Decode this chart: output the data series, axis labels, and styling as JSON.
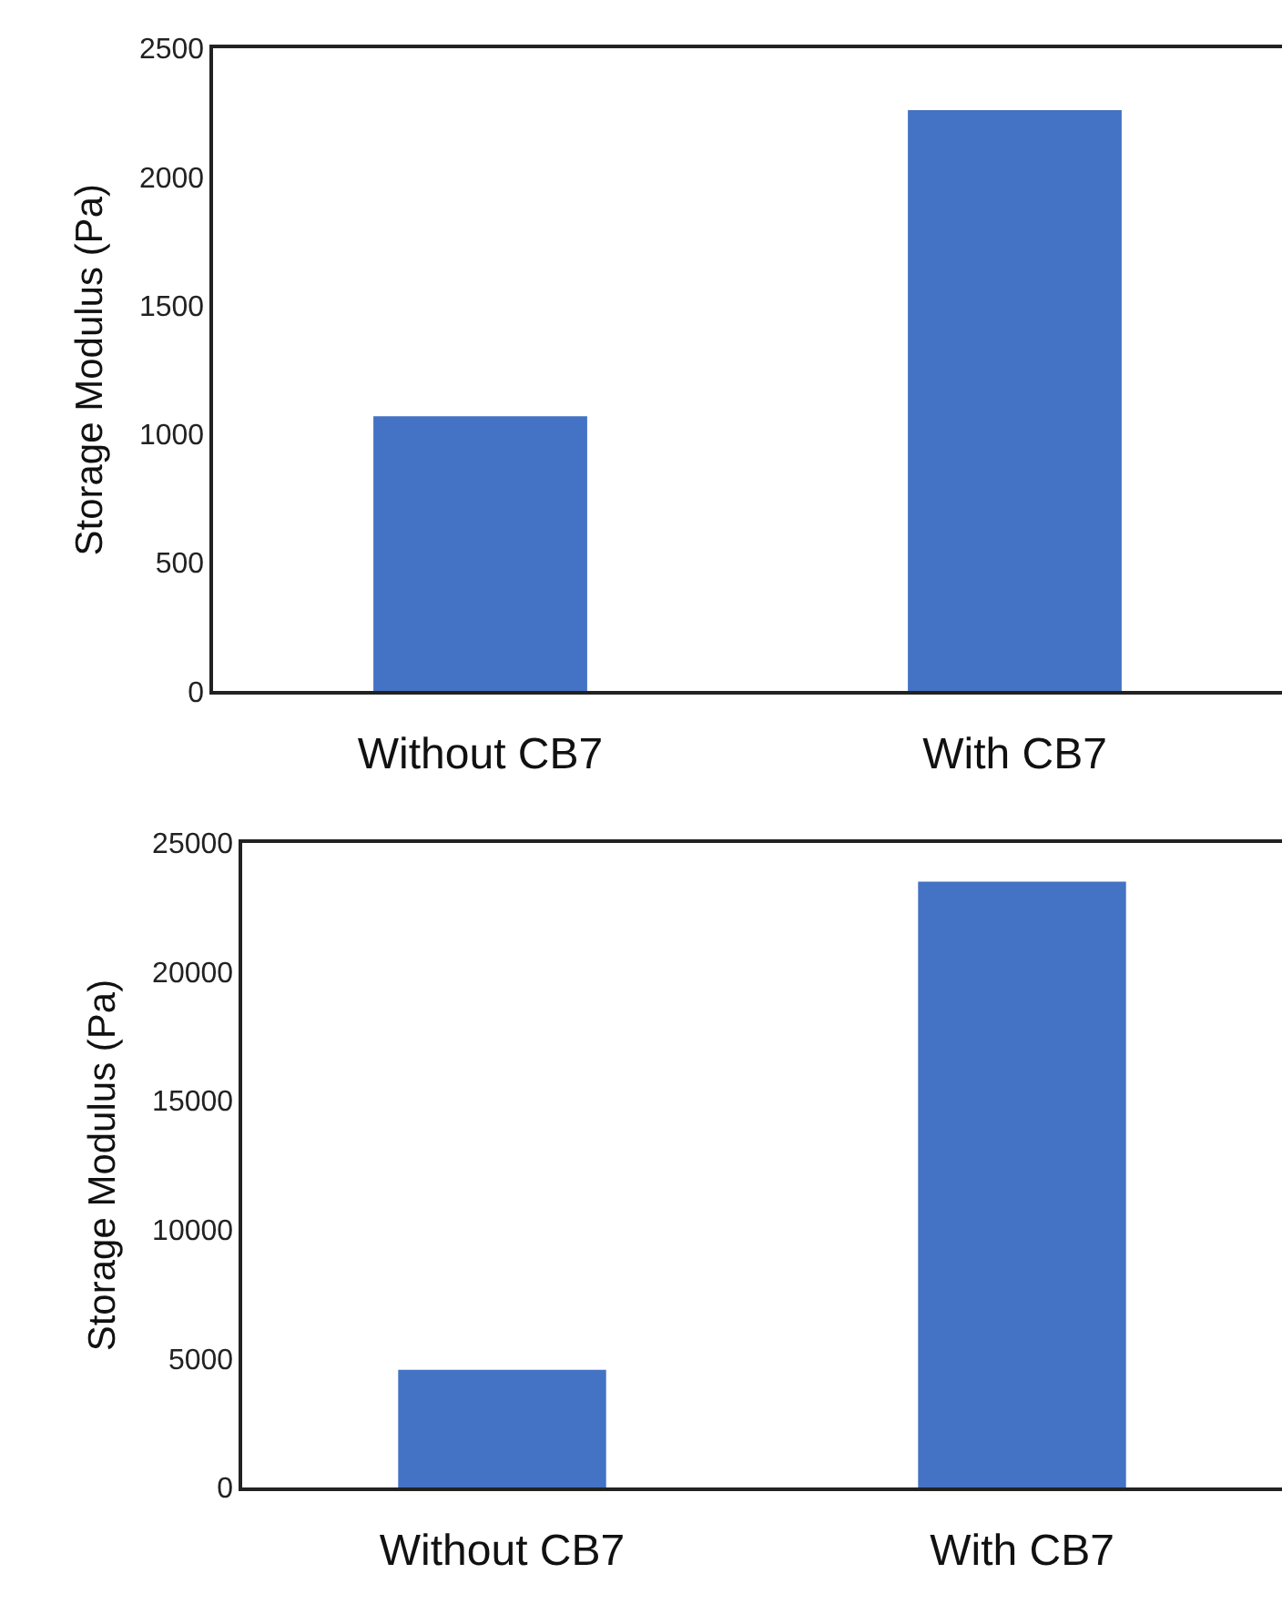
{
  "chart_data": [
    {
      "type": "bar",
      "ylabel": "Storage Modulus (Pa)",
      "categories": [
        "Without CB7",
        "With CB7"
      ],
      "values": [
        1070,
        2260
      ],
      "color": "#4472c4",
      "ylim": [
        0,
        2500
      ],
      "yticks": [
        0,
        500,
        1000,
        1500,
        2000,
        2500
      ]
    },
    {
      "type": "bar",
      "ylabel": "Storage Modulus (Pa)",
      "categories": [
        "Without CB7",
        "With CB7"
      ],
      "values": [
        4570,
        23500
      ],
      "color": "#4472c4",
      "ylim": [
        0,
        25000
      ],
      "yticks": [
        0,
        5000,
        10000,
        15000,
        20000,
        25000
      ]
    }
  ]
}
